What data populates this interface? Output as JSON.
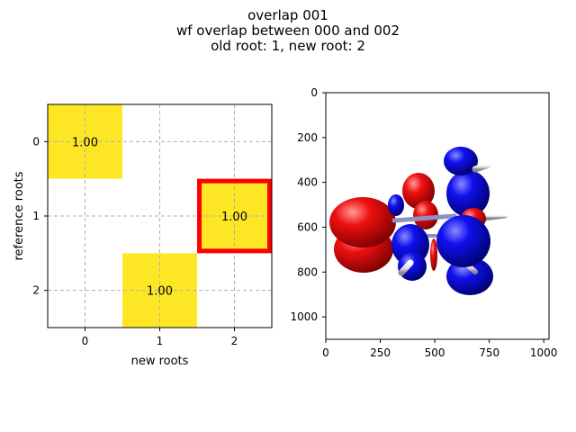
{
  "figure": {
    "title_lines": [
      "overlap 001",
      "wf overlap between 000 and 002",
      "old root: 1, new root: 2"
    ]
  },
  "colors": {
    "high": "#fde725",
    "low": "#ffffff",
    "highlight": "#ff0000",
    "grid": "#b0b0b0",
    "orbital_positive": "#ee0000",
    "orbital_negative": "#0000ee",
    "bond": "#9999cc",
    "hydrogen": "#e6e6e6"
  },
  "chart_data": [
    {
      "type": "heatmap",
      "xlabel": "new roots",
      "ylabel": "reference roots",
      "x_ticks": [
        "0",
        "1",
        "2"
      ],
      "y_ticks": [
        "0",
        "1",
        "2"
      ],
      "matrix": [
        [
          1.0,
          0.0,
          0.0
        ],
        [
          0.0,
          0.0,
          1.0
        ],
        [
          0.0,
          1.0,
          0.0
        ]
      ],
      "annotations": [
        {
          "row": 0,
          "col": 0,
          "text": "1.00"
        },
        {
          "row": 1,
          "col": 2,
          "text": "1.00"
        },
        {
          "row": 2,
          "col": 1,
          "text": "1.00"
        }
      ],
      "highlight_cell": {
        "row": 1,
        "col": 2
      },
      "grid": "dashed"
    },
    {
      "type": "image",
      "content": "molecular orbital rendering (red/blue lobes)",
      "x_ticks": [
        "0",
        "250",
        "500",
        "750",
        "1000"
      ],
      "y_ticks": [
        "0",
        "200",
        "400",
        "600",
        "800",
        "1000"
      ],
      "xlim": [
        0,
        1024
      ],
      "ylim": [
        1100,
        0
      ]
    }
  ]
}
